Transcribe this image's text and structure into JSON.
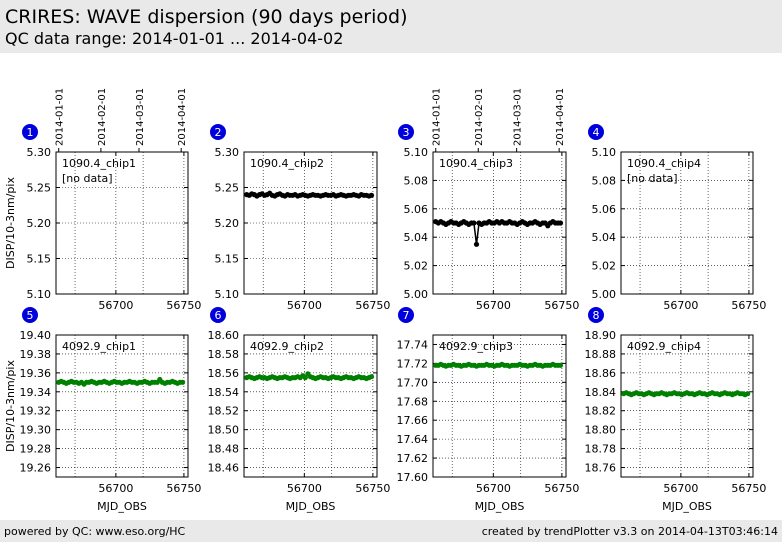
{
  "header": {
    "title": "CRIRES: WAVE dispersion (90 days period)",
    "subtitle": "QC data range: 2014-01-01 ... 2014-04-02"
  },
  "footer": {
    "left": "powered by QC: www.eso.org/HC",
    "right": "created by trendPlotter v3.3 on 2014-04-13T03:46:14"
  },
  "chart_data": [
    {
      "type": "scatter",
      "badge": "1",
      "label": "1090.4_chip1",
      "note": "[no data]",
      "ylabel": "DISP/10-3nm/pix",
      "xlabel": "",
      "xlim": [
        56656,
        56753
      ],
      "ylim": [
        5.1,
        5.3
      ],
      "yticks": [
        "5.30",
        "5.25",
        "5.20",
        "5.15",
        "5.10"
      ],
      "xticks": [
        "56700",
        "56750"
      ],
      "color": "#000000",
      "date_ticks": [
        "2014-01-01",
        "2014-02-01",
        "2014-03-01",
        "2014-04-01"
      ],
      "date_tick_mjd": [
        56658,
        56689,
        56717,
        56748
      ],
      "values": []
    },
    {
      "type": "scatter",
      "badge": "2",
      "label": "1090.4_chip2",
      "ylabel": "",
      "xlabel": "",
      "xlim": [
        56656,
        56753
      ],
      "ylim": [
        5.1,
        5.3
      ],
      "yticks": [
        "5.30",
        "5.25",
        "5.20",
        "5.15",
        "5.10"
      ],
      "xticks": [
        "56700",
        "56750"
      ],
      "color": "#000000",
      "values": [
        5.24,
        5.239,
        5.241,
        5.24,
        5.238,
        5.24,
        5.241,
        5.239,
        5.24,
        5.242,
        5.239,
        5.238,
        5.24,
        5.241,
        5.239,
        5.238,
        5.24,
        5.239,
        5.239,
        5.24,
        5.238,
        5.239,
        5.24,
        5.239,
        5.238,
        5.239,
        5.24,
        5.239,
        5.239,
        5.238,
        5.239,
        5.24,
        5.239,
        5.239,
        5.24,
        5.238,
        5.239,
        5.24,
        5.239,
        5.238,
        5.239,
        5.239,
        5.24,
        5.239,
        5.238,
        5.24,
        5.239,
        5.239,
        5.238,
        5.239
      ]
    },
    {
      "type": "scatter",
      "badge": "3",
      "label": "1090.4_chip3",
      "ylabel": "",
      "xlabel": "",
      "xlim": [
        56656,
        56753
      ],
      "ylim": [
        5.0,
        5.1
      ],
      "yticks": [
        "5.10",
        "5.08",
        "5.06",
        "5.04",
        "5.02",
        "5.00"
      ],
      "xticks": [
        "56700",
        "56750"
      ],
      "color": "#000000",
      "date_ticks": [
        "2014-01-01",
        "2014-02-01",
        "2014-03-01",
        "2014-04-01"
      ],
      "date_tick_mjd": [
        56658,
        56689,
        56717,
        56748
      ],
      "values": [
        5.051,
        5.05,
        5.051,
        5.05,
        5.049,
        5.05,
        5.051,
        5.05,
        5.05,
        5.049,
        5.05,
        5.051,
        5.05,
        5.049,
        5.05,
        5.05,
        5.035,
        5.05,
        5.049,
        5.05,
        5.05,
        5.051,
        5.05,
        5.05,
        5.051,
        5.05,
        5.051,
        5.05,
        5.05,
        5.051,
        5.05,
        5.05,
        5.049,
        5.05,
        5.051,
        5.05,
        5.049,
        5.05,
        5.05,
        5.051,
        5.05,
        5.049,
        5.05,
        5.05,
        5.048,
        5.05,
        5.051,
        5.05,
        5.05,
        5.05
      ]
    },
    {
      "type": "scatter",
      "badge": "4",
      "label": "1090.4_chip4",
      "note": "[no data]",
      "ylabel": "",
      "xlabel": "",
      "xlim": [
        56656,
        56753
      ],
      "ylim": [
        5.0,
        5.1
      ],
      "yticks": [
        "5.10",
        "5.08",
        "5.06",
        "5.04",
        "5.02",
        "5.00"
      ],
      "xticks": [
        "56700",
        "56750"
      ],
      "color": "#000000",
      "values": []
    },
    {
      "type": "scatter",
      "badge": "5",
      "label": "4092.9_chip1",
      "ylabel": "DISP/10-3nm/pix",
      "xlabel": "MJD_OBS",
      "xlim": [
        56656,
        56753
      ],
      "ylim": [
        19.25,
        19.4
      ],
      "yticks": [
        "19.40",
        "19.38",
        "19.36",
        "19.34",
        "19.32",
        "19.30",
        "19.28",
        "19.26"
      ],
      "xticks": [
        "56700",
        "56750"
      ],
      "color": "#008000",
      "values": [
        19.35,
        19.351,
        19.35,
        19.349,
        19.35,
        19.351,
        19.35,
        19.35,
        19.349,
        19.35,
        19.348,
        19.35,
        19.35,
        19.351,
        19.35,
        19.349,
        19.35,
        19.35,
        19.351,
        19.35,
        19.349,
        19.35,
        19.351,
        19.35,
        19.35,
        19.349,
        19.35,
        19.35,
        19.351,
        19.35,
        19.35,
        19.349,
        19.35,
        19.35,
        19.351,
        19.35,
        19.349,
        19.35,
        19.35,
        19.35,
        19.353,
        19.35,
        19.349,
        19.35,
        19.35,
        19.351,
        19.35,
        19.349,
        19.35,
        19.35
      ]
    },
    {
      "type": "scatter",
      "badge": "6",
      "label": "4092.9_chip2",
      "ylabel": "",
      "xlabel": "MJD_OBS",
      "xlim": [
        56656,
        56753
      ],
      "ylim": [
        18.45,
        18.6
      ],
      "yticks": [
        "18.60",
        "18.58",
        "18.56",
        "18.54",
        "18.52",
        "18.50",
        "18.48",
        "18.46"
      ],
      "xticks": [
        "56700",
        "56750"
      ],
      "color": "#008000",
      "values": [
        18.555,
        18.556,
        18.555,
        18.554,
        18.555,
        18.556,
        18.555,
        18.555,
        18.554,
        18.555,
        18.556,
        18.555,
        18.554,
        18.555,
        18.555,
        18.556,
        18.555,
        18.554,
        18.555,
        18.555,
        18.556,
        18.555,
        18.557,
        18.555,
        18.559,
        18.556,
        18.555,
        18.554,
        18.555,
        18.556,
        18.555,
        18.555,
        18.554,
        18.555,
        18.556,
        18.555,
        18.555,
        18.554,
        18.555,
        18.556,
        18.555,
        18.555,
        18.554,
        18.555,
        18.556,
        18.555,
        18.555,
        18.554,
        18.555,
        18.556
      ]
    },
    {
      "type": "scatter",
      "badge": "7",
      "label": "4092.9_chip3",
      "ylabel": "",
      "xlabel": "MJD_OBS",
      "xlim": [
        56656,
        56753
      ],
      "ylim": [
        17.6,
        17.75
      ],
      "yticks": [
        "17.74",
        "17.72",
        "17.70",
        "17.68",
        "17.66",
        "17.64",
        "17.62",
        "17.60"
      ],
      "xticks": [
        "56700",
        "56750"
      ],
      "color": "#008000",
      "values": [
        17.718,
        17.718,
        17.719,
        17.718,
        17.717,
        17.718,
        17.718,
        17.719,
        17.718,
        17.718,
        17.717,
        17.718,
        17.718,
        17.719,
        17.718,
        17.718,
        17.717,
        17.718,
        17.718,
        17.718,
        17.719,
        17.718,
        17.718,
        17.717,
        17.718,
        17.718,
        17.719,
        17.718,
        17.718,
        17.717,
        17.718,
        17.718,
        17.718,
        17.719,
        17.718,
        17.718,
        17.717,
        17.718,
        17.718,
        17.719,
        17.718,
        17.718,
        17.717,
        17.718,
        17.718,
        17.718,
        17.719,
        17.718,
        17.718,
        17.718
      ]
    },
    {
      "type": "scatter",
      "badge": "8",
      "label": "4092.9_chip4",
      "ylabel": "",
      "xlabel": "MJD_OBS",
      "xlim": [
        56656,
        56753
      ],
      "ylim": [
        18.75,
        18.9
      ],
      "yticks": [
        "18.90",
        "18.88",
        "18.86",
        "18.84",
        "18.82",
        "18.80",
        "18.78",
        "18.76"
      ],
      "xticks": [
        "56700",
        "56750"
      ],
      "color": "#008000",
      "values": [
        18.838,
        18.839,
        18.838,
        18.837,
        18.838,
        18.839,
        18.838,
        18.838,
        18.837,
        18.838,
        18.839,
        18.838,
        18.837,
        18.838,
        18.838,
        18.839,
        18.838,
        18.837,
        18.838,
        18.838,
        18.839,
        18.838,
        18.838,
        18.837,
        18.838,
        18.839,
        18.838,
        18.838,
        18.837,
        18.838,
        18.839,
        18.838,
        18.838,
        18.837,
        18.838,
        18.839,
        18.838,
        18.838,
        18.837,
        18.838,
        18.839,
        18.838,
        18.838,
        18.837,
        18.838,
        18.839,
        18.838,
        18.838,
        18.837,
        18.838
      ]
    }
  ]
}
